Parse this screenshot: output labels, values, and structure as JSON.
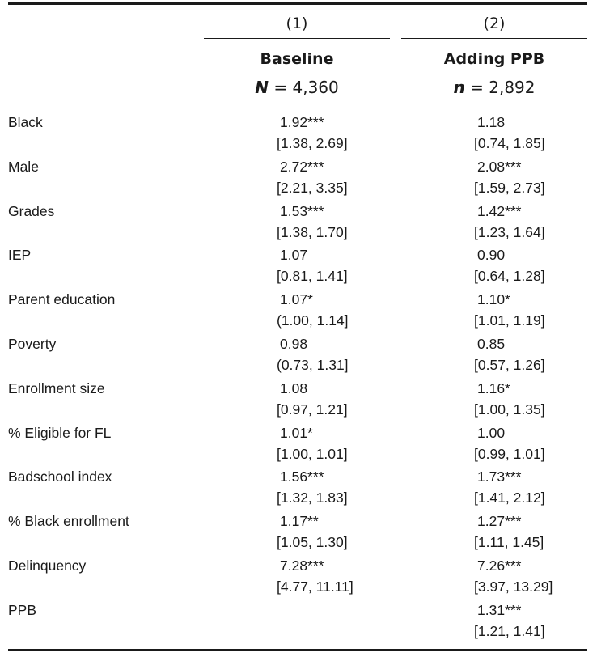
{
  "header": {
    "columns": [
      {
        "number": "(1)",
        "name": "Baseline",
        "n_symbol": "N",
        "n_value": "4,360"
      },
      {
        "number": "(2)",
        "name": "Adding PPB",
        "n_symbol": "n",
        "n_value": "2,892"
      }
    ]
  },
  "rows": [
    {
      "label": "Black",
      "c1": {
        "est": "1.92***",
        "ci": "[1.38, 2.69]"
      },
      "c2": {
        "est": "1.18",
        "ci": "[0.74, 1.85]"
      }
    },
    {
      "label": "Male",
      "c1": {
        "est": "2.72***",
        "ci": "[2.21, 3.35]"
      },
      "c2": {
        "est": "2.08***",
        "ci": "[1.59, 2.73]"
      }
    },
    {
      "label": "Grades",
      "c1": {
        "est": "1.53***",
        "ci": "[1.38, 1.70]"
      },
      "c2": {
        "est": "1.42***",
        "ci": "[1.23, 1.64]"
      }
    },
    {
      "label": "IEP",
      "c1": {
        "est": "1.07",
        "ci": "[0.81, 1.41]"
      },
      "c2": {
        "est": "0.90",
        "ci": "[0.64, 1.28]"
      }
    },
    {
      "label": "Parent education",
      "c1": {
        "est": "1.07*",
        "ci": "(1.00, 1.14]"
      },
      "c2": {
        "est": "1.10*",
        "ci": "[1.01, 1.19]"
      }
    },
    {
      "label": "Poverty",
      "c1": {
        "est": "0.98",
        "ci": "(0.73, 1.31]"
      },
      "c2": {
        "est": "0.85",
        "ci": "[0.57, 1.26]"
      }
    },
    {
      "label": "Enrollment size",
      "c1": {
        "est": "1.08",
        "ci": "[0.97, 1.21]"
      },
      "c2": {
        "est": "1.16*",
        "ci": "[1.00, 1.35]"
      }
    },
    {
      "label": "% Eligible for FL",
      "c1": {
        "est": "1.01*",
        "ci": "[1.00, 1.01]"
      },
      "c2": {
        "est": "1.00",
        "ci": "[0.99, 1.01]"
      }
    },
    {
      "label": "Badschool index",
      "c1": {
        "est": "1.56***",
        "ci": "[1.32, 1.83]"
      },
      "c2": {
        "est": "1.73***",
        "ci": "[1.41, 2.12]"
      }
    },
    {
      "label": "% Black enrollment",
      "c1": {
        "est": "1.17**",
        "ci": "[1.05, 1.30]"
      },
      "c2": {
        "est": "1.27***",
        "ci": "[1.11, 1.45]"
      }
    },
    {
      "label": "Delinquency",
      "c1": {
        "est": "7.28***",
        "ci": "[4.77, 11.11]"
      },
      "c2": {
        "est": "7.26***",
        "ci": "[3.97, 13.29]"
      }
    },
    {
      "label": "PPB",
      "c1": {
        "est": "",
        "ci": ""
      },
      "c2": {
        "est": "1.31***",
        "ci": "[1.21, 1.41]"
      }
    }
  ]
}
